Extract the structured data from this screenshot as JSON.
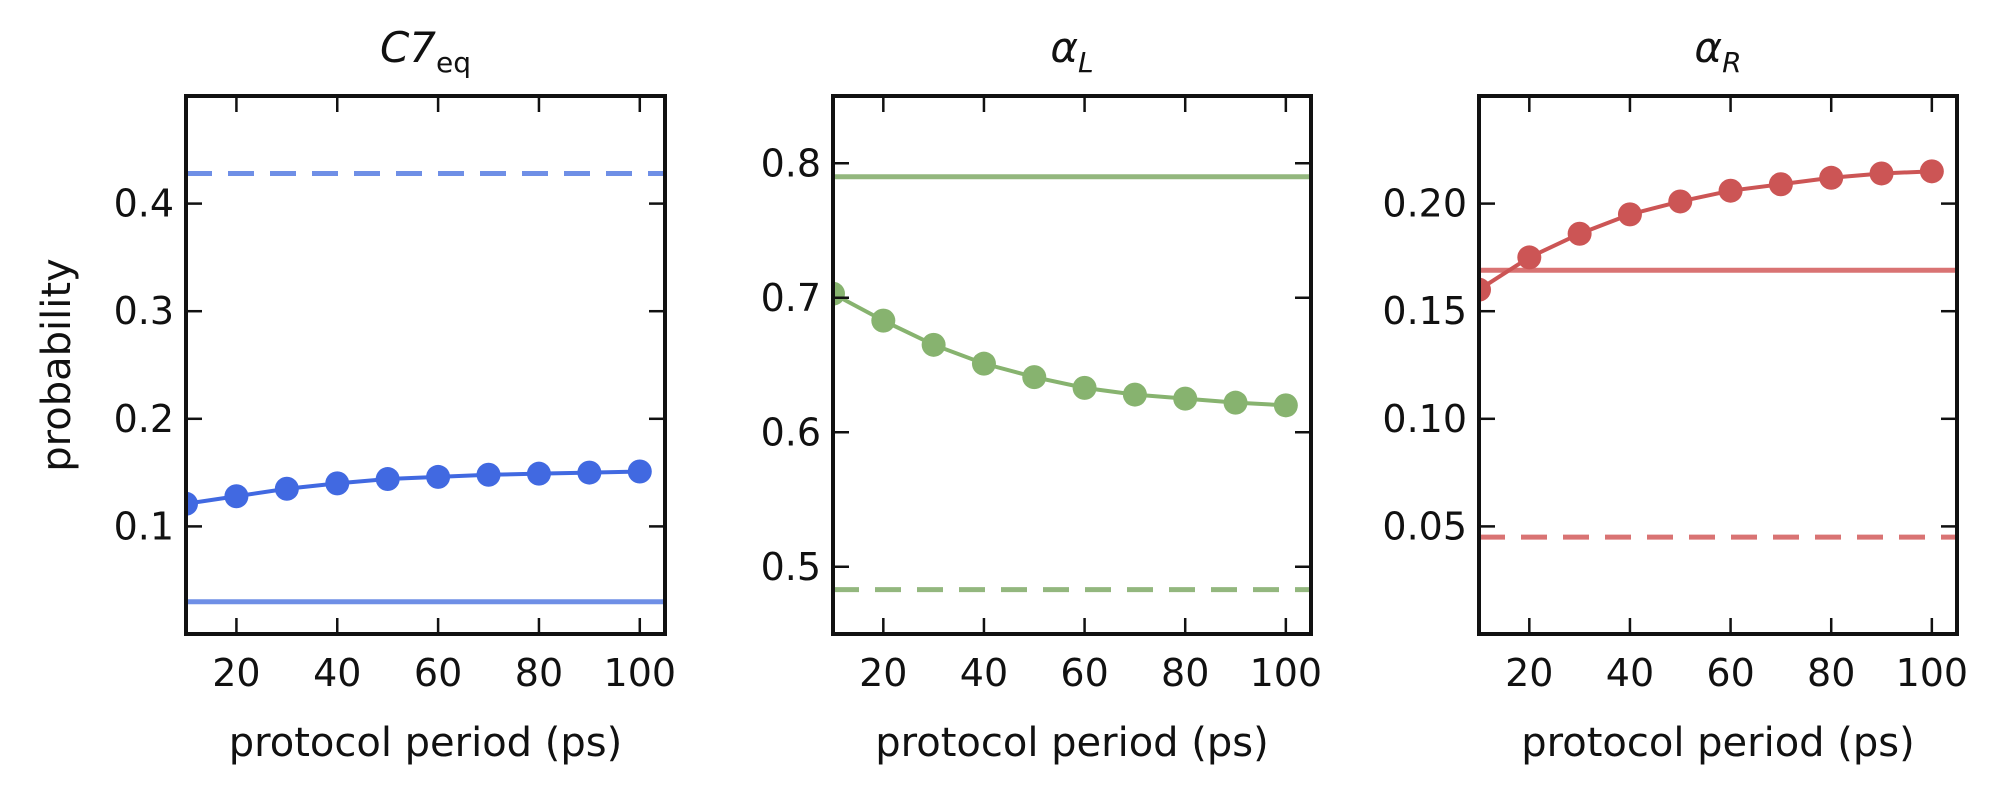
{
  "chart_data": [
    {
      "type": "line",
      "title": "C7",
      "title_subscript": "eq",
      "title_italic": true,
      "xlabel": "protocol period (ps)",
      "ylabel": "probability",
      "xlim": [
        10,
        105
      ],
      "ylim": [
        0,
        0.5
      ],
      "xticks": [
        20,
        40,
        60,
        80,
        100
      ],
      "xtick_labels": [
        "20",
        "40",
        "60",
        "80",
        "100"
      ],
      "yticks": [
        0.1,
        0.2,
        0.3,
        0.4
      ],
      "ytick_labels": [
        "0.1",
        "0.2",
        "0.3",
        "0.4"
      ],
      "color": "#4169e1",
      "line_color": "#6f8fe6",
      "series": [
        {
          "name": "protocol",
          "style": "line-marker",
          "x": [
            10,
            20,
            30,
            40,
            50,
            60,
            70,
            80,
            90,
            100
          ],
          "y": [
            0.121,
            0.128,
            0.135,
            0.14,
            0.144,
            0.146,
            0.148,
            0.149,
            0.15,
            0.151
          ]
        }
      ],
      "hlines": [
        {
          "name": "dashed reference",
          "style": "dashed",
          "y": 0.428
        },
        {
          "name": "solid reference",
          "style": "solid",
          "y": 0.03
        }
      ]
    },
    {
      "type": "line",
      "title": "α",
      "title_subscript": "L",
      "title_italic": true,
      "xlabel": "protocol period (ps)",
      "ylabel": "",
      "xlim": [
        10,
        105
      ],
      "ylim": [
        0.45,
        0.85
      ],
      "xticks": [
        20,
        40,
        60,
        80,
        100
      ],
      "xtick_labels": [
        "20",
        "40",
        "60",
        "80",
        "100"
      ],
      "yticks": [
        0.5,
        0.6,
        0.7,
        0.8
      ],
      "ytick_labels": [
        "0.5",
        "0.6",
        "0.7",
        "0.8"
      ],
      "color": "#87b36f",
      "line_color": "#93b77e",
      "series": [
        {
          "name": "protocol",
          "style": "line-marker",
          "x": [
            10,
            20,
            30,
            40,
            50,
            60,
            70,
            80,
            90,
            100
          ],
          "y": [
            0.703,
            0.683,
            0.665,
            0.651,
            0.641,
            0.633,
            0.628,
            0.625,
            0.622,
            0.62
          ]
        }
      ],
      "hlines": [
        {
          "name": "solid reference",
          "style": "solid",
          "y": 0.79
        },
        {
          "name": "dashed reference",
          "style": "dashed",
          "y": 0.483
        }
      ]
    },
    {
      "type": "line",
      "title": "α",
      "title_subscript": "R",
      "title_italic": true,
      "xlabel": "protocol period (ps)",
      "ylabel": "",
      "xlim": [
        10,
        105
      ],
      "ylim": [
        0,
        0.25
      ],
      "xticks": [
        20,
        40,
        60,
        80,
        100
      ],
      "xtick_labels": [
        "20",
        "40",
        "60",
        "80",
        "100"
      ],
      "yticks": [
        0.05,
        0.1,
        0.15,
        0.2
      ],
      "ytick_labels": [
        "0.05",
        "0.10",
        "0.15",
        "0.20"
      ],
      "color": "#cc5555",
      "line_color": "#d97373",
      "series": [
        {
          "name": "protocol",
          "style": "line-marker",
          "x": [
            10,
            20,
            30,
            40,
            50,
            60,
            70,
            80,
            90,
            100
          ],
          "y": [
            0.16,
            0.175,
            0.186,
            0.195,
            0.201,
            0.206,
            0.209,
            0.212,
            0.214,
            0.215
          ]
        }
      ],
      "hlines": [
        {
          "name": "solid reference",
          "style": "solid",
          "y": 0.169
        },
        {
          "name": "dashed reference",
          "style": "dashed",
          "y": 0.045
        }
      ]
    }
  ]
}
